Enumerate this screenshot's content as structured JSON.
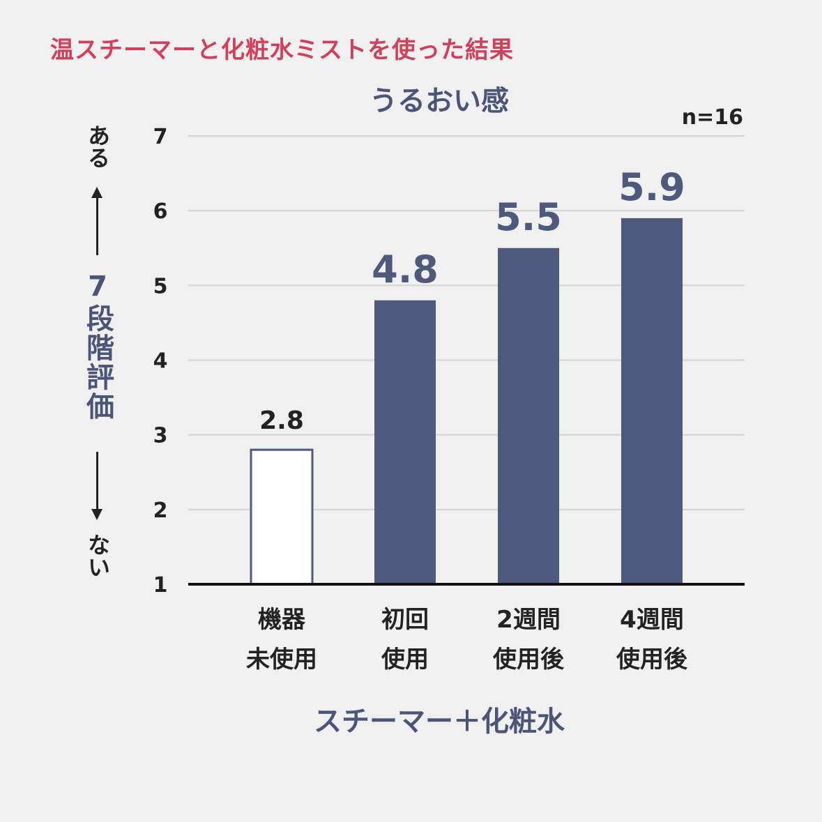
{
  "page_title": "温スチーマーと化粧水ミストを使った結果",
  "chart_data": {
    "type": "bar",
    "title": "うるおい感",
    "n_label": "n=16",
    "ylabel": "7段階評価",
    "ylabel_top": "ある",
    "ylabel_bottom": "ない",
    "xlabel": "スチーマー＋化粧水",
    "ylim": [
      1,
      7
    ],
    "yticks": [
      1,
      2,
      3,
      4,
      5,
      6,
      7
    ],
    "grid": true,
    "categories": [
      {
        "line1": "機器",
        "line2": "未使用"
      },
      {
        "line1": "初回",
        "line2": "使用"
      },
      {
        "line1": "2週間",
        "line2": "使用後"
      },
      {
        "line1": "4週間",
        "line2": "使用後"
      }
    ],
    "values": [
      2.8,
      4.8,
      5.5,
      5.9
    ],
    "value_labels": [
      "2.8",
      "4.8",
      "5.5",
      "5.9"
    ],
    "bar_styles": [
      "outline",
      "filled",
      "filled",
      "filled"
    ]
  },
  "colors": {
    "bar_fill": "#4d5a7c",
    "bar_outline": "#4d5a7c",
    "title_red": "#d0405a",
    "grid": "#d4d4d4",
    "axis": "#111111"
  }
}
